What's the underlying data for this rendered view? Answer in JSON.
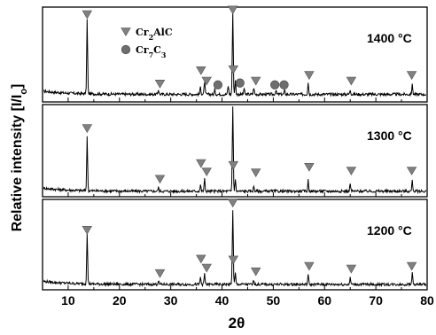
{
  "chart_data": {
    "type": "line",
    "xlabel": "2θ",
    "ylabel": "Relative intensity [I/I_o]",
    "xlim": [
      5,
      80
    ],
    "x_ticks": [
      10,
      20,
      30,
      40,
      50,
      60,
      70,
      80
    ],
    "grid": false,
    "legend": {
      "position": "top-left",
      "entries": [
        {
          "label": "Cr2AlC",
          "label_main": "Cr",
          "sub1": "2",
          "label_rest": "AlC",
          "marker": "triangle-down",
          "color": "#808080"
        },
        {
          "label": "Cr7C3",
          "label_main": "Cr",
          "sub1": "7",
          "label_rest": "C",
          "sub2": "3",
          "marker": "circle",
          "color": "#6e6e6e"
        }
      ]
    },
    "panels": [
      {
        "label": "1400 °C",
        "label_text": "1400 ",
        "label_unit": "°C",
        "baseline": 0.08,
        "peaks": [
          {
            "x": 13.7,
            "h": 0.78
          },
          {
            "x": 27.6,
            "h": 0.05
          },
          {
            "x": 35.8,
            "h": 0.08
          },
          {
            "x": 36.6,
            "h": 0.14
          },
          {
            "x": 38.6,
            "h": 0.05
          },
          {
            "x": 41.2,
            "h": 0.09
          },
          {
            "x": 42.1,
            "h": 0.86
          },
          {
            "x": 42.6,
            "h": 0.14
          },
          {
            "x": 44.3,
            "h": 0.06
          },
          {
            "x": 46.2,
            "h": 0.07
          },
          {
            "x": 50.5,
            "h": 0.04
          },
          {
            "x": 52.2,
            "h": 0.04
          },
          {
            "x": 56.8,
            "h": 0.13
          },
          {
            "x": 65.0,
            "h": 0.05
          },
          {
            "x": 77.1,
            "h": 0.1
          }
        ],
        "markers": [
          {
            "type": "Cr2AlC",
            "x": 13.7,
            "y": 0.92
          },
          {
            "type": "Cr2AlC",
            "x": 27.9,
            "y": 0.19
          },
          {
            "type": "Cr2AlC",
            "x": 35.9,
            "y": 0.33
          },
          {
            "type": "Cr2AlC",
            "x": 37.0,
            "y": 0.22
          },
          {
            "type": "Cr2AlC",
            "x": 42.1,
            "y": 0.97
          },
          {
            "type": "Cr2AlC",
            "x": 42.2,
            "y": 0.34
          },
          {
            "type": "Cr2AlC",
            "x": 46.6,
            "y": 0.22
          },
          {
            "type": "Cr2AlC",
            "x": 57.0,
            "y": 0.28
          },
          {
            "type": "Cr2AlC",
            "x": 65.2,
            "y": 0.22
          },
          {
            "type": "Cr2AlC",
            "x": 77.0,
            "y": 0.28
          },
          {
            "type": "Cr7C3",
            "x": 39.2,
            "y": 0.18
          },
          {
            "type": "Cr7C3",
            "x": 43.5,
            "y": 0.2
          },
          {
            "type": "Cr7C3",
            "x": 50.3,
            "y": 0.18
          },
          {
            "type": "Cr7C3",
            "x": 52.1,
            "y": 0.18
          }
        ]
      },
      {
        "label": "1300 °C",
        "label_text": "1300 ",
        "label_unit": "°C",
        "baseline": 0.06,
        "peaks": [
          {
            "x": 13.7,
            "h": 0.58
          },
          {
            "x": 27.6,
            "h": 0.04
          },
          {
            "x": 35.8,
            "h": 0.07
          },
          {
            "x": 36.6,
            "h": 0.13
          },
          {
            "x": 42.1,
            "h": 0.92
          },
          {
            "x": 42.6,
            "h": 0.12
          },
          {
            "x": 46.2,
            "h": 0.05
          },
          {
            "x": 56.8,
            "h": 0.12
          },
          {
            "x": 65.0,
            "h": 0.08
          },
          {
            "x": 77.1,
            "h": 0.11
          }
        ],
        "markers": [
          {
            "type": "Cr2AlC",
            "x": 13.7,
            "y": 0.74
          },
          {
            "type": "Cr2AlC",
            "x": 27.9,
            "y": 0.19
          },
          {
            "type": "Cr2AlC",
            "x": 35.9,
            "y": 0.36
          },
          {
            "type": "Cr2AlC",
            "x": 37.0,
            "y": 0.27
          },
          {
            "type": "Cr2AlC",
            "x": 42.2,
            "y": 0.34
          },
          {
            "type": "Cr2AlC",
            "x": 46.6,
            "y": 0.26
          },
          {
            "type": "Cr2AlC",
            "x": 57.0,
            "y": 0.32
          },
          {
            "type": "Cr2AlC",
            "x": 65.2,
            "y": 0.28
          },
          {
            "type": "Cr2AlC",
            "x": 77.0,
            "y": 0.28
          }
        ]
      },
      {
        "label": "1200 °C",
        "label_text": "1200 ",
        "label_unit": "°C",
        "baseline": 0.06,
        "peaks": [
          {
            "x": 13.7,
            "h": 0.57
          },
          {
            "x": 27.6,
            "h": 0.04
          },
          {
            "x": 35.8,
            "h": 0.08
          },
          {
            "x": 36.6,
            "h": 0.12
          },
          {
            "x": 42.1,
            "h": 0.83
          },
          {
            "x": 42.6,
            "h": 0.12
          },
          {
            "x": 46.2,
            "h": 0.05
          },
          {
            "x": 56.8,
            "h": 0.11
          },
          {
            "x": 65.0,
            "h": 0.07
          },
          {
            "x": 77.1,
            "h": 0.12
          }
        ],
        "markers": [
          {
            "type": "Cr2AlC",
            "x": 13.7,
            "y": 0.66
          },
          {
            "type": "Cr2AlC",
            "x": 27.9,
            "y": 0.18
          },
          {
            "type": "Cr2AlC",
            "x": 35.9,
            "y": 0.34
          },
          {
            "type": "Cr2AlC",
            "x": 37.0,
            "y": 0.24
          },
          {
            "type": "Cr2AlC",
            "x": 42.1,
            "y": 0.96
          },
          {
            "type": "Cr2AlC",
            "x": 42.2,
            "y": 0.33
          },
          {
            "type": "Cr2AlC",
            "x": 46.6,
            "y": 0.2
          },
          {
            "type": "Cr2AlC",
            "x": 57.0,
            "y": 0.26
          },
          {
            "type": "Cr2AlC",
            "x": 65.2,
            "y": 0.23
          },
          {
            "type": "Cr2AlC",
            "x": 77.0,
            "y": 0.26
          }
        ]
      }
    ]
  }
}
